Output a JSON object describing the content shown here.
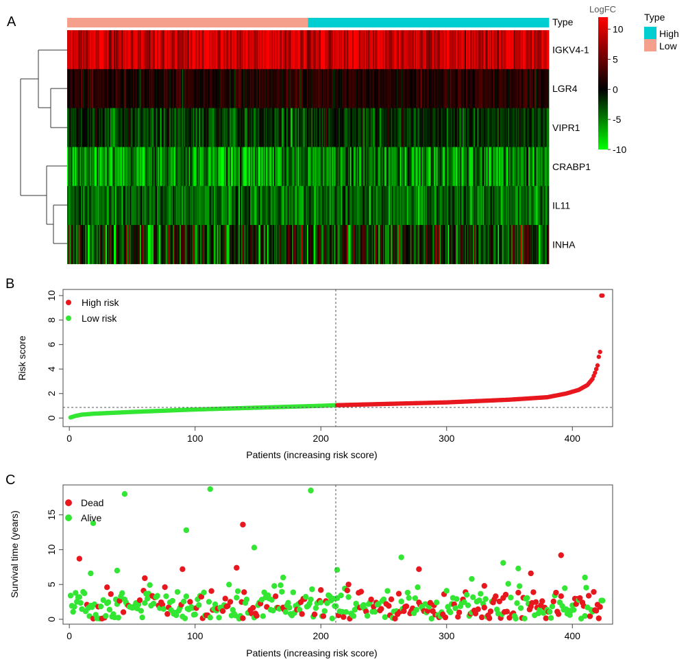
{
  "figure": {
    "panels": [
      {
        "label": "A"
      },
      {
        "label": "B"
      },
      {
        "label": "C"
      }
    ]
  },
  "colors": {
    "high": "#00CED1",
    "low": "#F4A08C",
    "red_point": "#E8171E",
    "green_point": "#33E633",
    "heat_high": "#FF0000",
    "heat_mid": "#000000",
    "heat_low": "#00FF00"
  },
  "chart_data": [
    {
      "type": "heatmap",
      "panel": "A",
      "annotation_label": "Type",
      "annotation_groups": [
        {
          "name": "Low",
          "n_patients": 212
        },
        {
          "name": "High",
          "n_patients": 212
        }
      ],
      "rows": [
        "IGKV4-1",
        "LGR4",
        "VIPR1",
        "CRABP1",
        "IL11",
        "INHA"
      ],
      "row_mean_logfc": [
        9.5,
        1.5,
        -2.0,
        -5.5,
        -4.0,
        -1.5
      ],
      "row_spread": [
        2.5,
        1.5,
        2.0,
        3.0,
        2.0,
        4.0
      ],
      "n_columns": 424,
      "color_scale": {
        "title": "LogFC",
        "min": -10,
        "max": 12,
        "ticks": [
          10,
          5,
          0,
          -5,
          -10
        ],
        "stops": [
          {
            "value": -10,
            "color": "#00FF00"
          },
          {
            "value": 0,
            "color": "#000000"
          },
          {
            "value": 12,
            "color": "#FF0000"
          }
        ]
      },
      "legend": {
        "title": "Type",
        "items": [
          {
            "label": "High"
          },
          {
            "label": "Low"
          }
        ]
      },
      "dendrogram": true
    },
    {
      "type": "scatter",
      "panel": "B",
      "xlabel": "Patients (increasing risk score)",
      "ylabel": "Risk score",
      "xlim": [
        -5,
        432
      ],
      "ylim": [
        -0.7,
        10.5
      ],
      "xticks": [
        0,
        100,
        200,
        300,
        400
      ],
      "yticks": [
        0,
        2,
        4,
        6,
        8,
        10
      ],
      "cutoff_x": 212,
      "cutoff_y": 1.05,
      "n_points": 424,
      "risk_curve": [
        [
          1,
          0.05
        ],
        [
          5,
          0.18
        ],
        [
          10,
          0.28
        ],
        [
          20,
          0.36
        ],
        [
          50,
          0.5
        ],
        [
          100,
          0.7
        ],
        [
          150,
          0.85
        ],
        [
          200,
          1.0
        ],
        [
          212,
          1.05
        ],
        [
          250,
          1.15
        ],
        [
          300,
          1.28
        ],
        [
          350,
          1.5
        ],
        [
          380,
          1.7
        ],
        [
          395,
          2.0
        ],
        [
          405,
          2.3
        ],
        [
          412,
          2.7
        ],
        [
          416,
          3.2
        ],
        [
          418,
          3.7
        ],
        [
          420,
          4.3
        ],
        [
          421,
          5.0
        ],
        [
          422,
          5.4
        ],
        [
          423,
          10.0
        ],
        [
          424,
          10.0
        ]
      ],
      "series": [
        {
          "name": "High risk",
          "color": "#E8171E"
        },
        {
          "name": "Low risk",
          "color": "#33E633"
        }
      ],
      "legend_position": "top-left"
    },
    {
      "type": "scatter",
      "panel": "C",
      "xlabel": "Patients (increasing risk score)",
      "ylabel": "Survival time (years)",
      "xlim": [
        -5,
        432
      ],
      "ylim": [
        -0.7,
        19.3
      ],
      "xticks": [
        0,
        100,
        200,
        300,
        400
      ],
      "yticks": [
        0,
        5,
        10,
        15
      ],
      "cutoff_x": 212,
      "series": [
        {
          "name": "Dead",
          "color": "#E8171E",
          "notable_points": [
            [
              8,
              8.7
            ],
            [
              90,
              7.2
            ],
            [
              138,
              13.6
            ],
            [
              133,
              7.4
            ],
            [
              278,
              7.2
            ],
            [
              367,
              6.6
            ],
            [
              391,
              9.2
            ],
            [
              30,
              4.6
            ],
            [
              60,
              5.9
            ],
            [
              200,
              4.2
            ],
            [
              222,
              5.0
            ],
            [
              330,
              4.8
            ]
          ]
        },
        {
          "name": "Alive",
          "color": "#33E633",
          "notable_points": [
            [
              44,
              18.0
            ],
            [
              19,
              13.8
            ],
            [
              112,
              18.7
            ],
            [
              93,
              12.8
            ],
            [
              147,
              10.3
            ],
            [
              192,
              18.5
            ],
            [
              264,
              8.9
            ],
            [
              213,
              7.1
            ],
            [
              38,
              7.0
            ],
            [
              17,
              6.6
            ],
            [
              345,
              8.1
            ],
            [
              357,
              7.3
            ],
            [
              410,
              6.0
            ],
            [
              170,
              6.0
            ],
            [
              320,
              5.8
            ]
          ]
        }
      ],
      "legend_position": "top-left"
    }
  ]
}
